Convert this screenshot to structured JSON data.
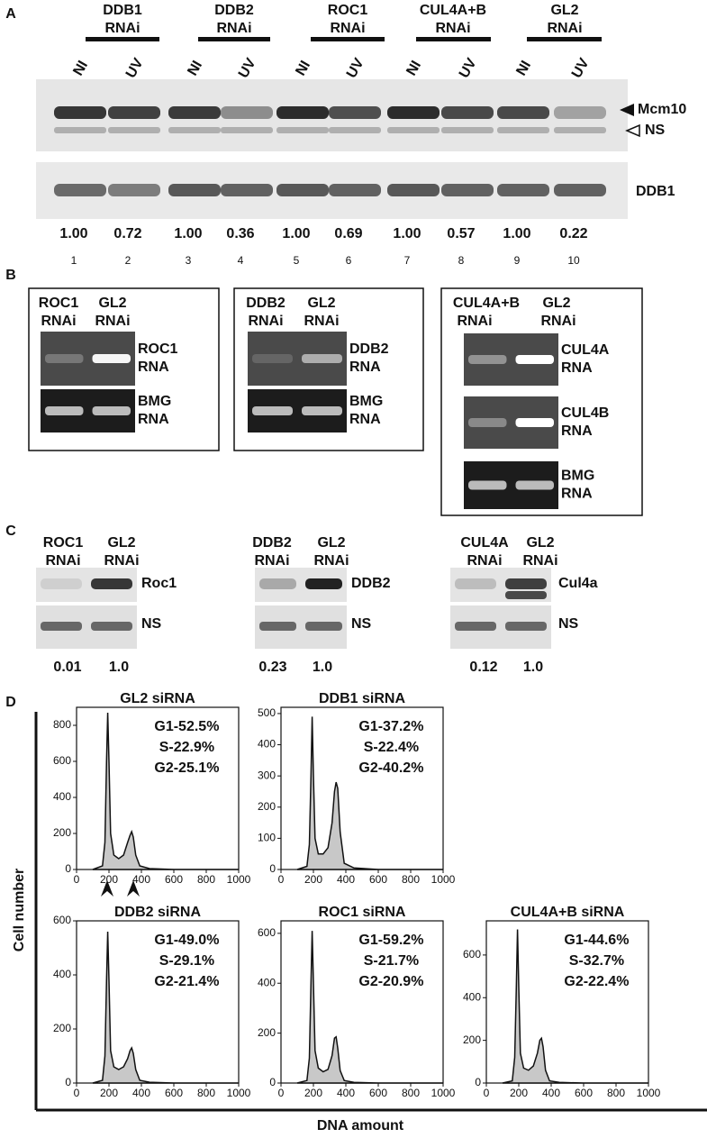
{
  "panel_a": {
    "label": "A",
    "groups": [
      {
        "name": [
          "DDB1",
          "RNAi"
        ]
      },
      {
        "name": [
          "DDB2",
          "RNAi"
        ]
      },
      {
        "name": [
          "ROC1",
          "RNAi"
        ]
      },
      {
        "name": [
          "CUL4A+B",
          "RNAi"
        ]
      },
      {
        "name": [
          "GL2",
          "RNAi"
        ]
      }
    ],
    "lanes": [
      "NI",
      "UV",
      "NI",
      "UV",
      "NI",
      "UV",
      "NI",
      "UV",
      "NI",
      "UV"
    ],
    "bands": [
      "Mcm10",
      "NS",
      "DDB1"
    ],
    "quantities": [
      "1.00",
      "0.72",
      "1.00",
      "0.36",
      "1.00",
      "0.69",
      "1.00",
      "0.57",
      "1.00",
      "0.22"
    ],
    "lane_numbers": [
      1,
      2,
      3,
      4,
      5,
      6,
      7,
      8,
      9,
      10
    ]
  },
  "panel_b": {
    "label": "B",
    "boxes": [
      {
        "headers": [
          [
            "ROC1",
            "RNAi"
          ],
          [
            "GL2",
            "RNAi"
          ]
        ],
        "gels": [
          [
            "ROC1",
            "RNA"
          ],
          [
            "BMG",
            "RNA"
          ]
        ]
      },
      {
        "headers": [
          [
            "DDB2",
            "RNAi"
          ],
          [
            "GL2",
            "RNAi"
          ]
        ],
        "gels": [
          [
            "DDB2",
            "RNA"
          ],
          [
            "BMG",
            "RNA"
          ]
        ]
      },
      {
        "headers": [
          [
            "CUL4A+B",
            "RNAi"
          ],
          [
            "GL2",
            "RNAi"
          ]
        ],
        "gels": [
          [
            "CUL4A",
            "RNA"
          ],
          [
            "CUL4B",
            "RNA"
          ],
          [
            "BMG",
            "RNA"
          ]
        ]
      }
    ]
  },
  "panel_c": {
    "label": "C",
    "blots": [
      {
        "headers": [
          [
            "ROC1",
            "RNAi"
          ],
          [
            "GL2",
            "RNAi"
          ]
        ],
        "bands": [
          "Roc1",
          "NS"
        ],
        "quantities": [
          "0.01",
          "1.0"
        ]
      },
      {
        "headers": [
          [
            "DDB2",
            "RNAi"
          ],
          [
            "GL2",
            "RNAi"
          ]
        ],
        "bands": [
          "DDB2",
          "NS"
        ],
        "quantities": [
          "0.23",
          "1.0"
        ]
      },
      {
        "headers": [
          [
            "CUL4A",
            "RNAi"
          ],
          [
            "GL2",
            "RNAi"
          ]
        ],
        "bands": [
          "Cul4a",
          "NS"
        ],
        "quantities": [
          "0.12",
          "1.0"
        ]
      }
    ]
  },
  "panel_d": {
    "label": "D",
    "ylabel": "Cell number",
    "xlabel": "DNA amount",
    "charts": [
      {
        "type": "line",
        "title": "GL2 siRNA",
        "stats": [
          "G1-52.5%",
          "S-22.9%",
          "G2-25.1%"
        ],
        "color": "#c8c8c8",
        "x": [
          100,
          160,
          175,
          185,
          192,
          200,
          210,
          230,
          260,
          290,
          315,
          330,
          340,
          350,
          365,
          390,
          450,
          600,
          1000
        ],
        "values": [
          0,
          20,
          150,
          600,
          870,
          600,
          200,
          80,
          60,
          80,
          150,
          190,
          210,
          180,
          80,
          20,
          5,
          0,
          0
        ],
        "xlim": [
          0,
          1000
        ],
        "xticks": [
          0,
          200,
          400,
          600,
          800,
          1000
        ],
        "ylim": [
          0,
          900
        ],
        "yticks": [
          0,
          200,
          400,
          600,
          800
        ]
      },
      {
        "type": "line",
        "title": "DDB1 siRNA",
        "stats": [
          "G1-37.2%",
          "S-22.4%",
          "G2-40.2%"
        ],
        "color": "#c8c8c8",
        "x": [
          100,
          160,
          175,
          185,
          192,
          200,
          210,
          230,
          260,
          290,
          315,
          330,
          340,
          350,
          365,
          390,
          450,
          600,
          1000
        ],
        "values": [
          0,
          10,
          80,
          300,
          490,
          300,
          100,
          50,
          50,
          70,
          150,
          250,
          280,
          260,
          120,
          20,
          5,
          0,
          0
        ],
        "xlim": [
          0,
          1000
        ],
        "xticks": [
          0,
          200,
          400,
          600,
          800,
          1000
        ],
        "ylim": [
          0,
          520
        ],
        "yticks": [
          0,
          100,
          200,
          300,
          400,
          500
        ]
      },
      {
        "type": "line",
        "title": "DDB2 siRNA",
        "stats": [
          "G1-49.0%",
          "S-29.1%",
          "G2-21.4%"
        ],
        "color": "#c8c8c8",
        "x": [
          100,
          160,
          175,
          185,
          192,
          200,
          210,
          230,
          260,
          290,
          315,
          330,
          340,
          350,
          365,
          390,
          450,
          600,
          1000
        ],
        "values": [
          0,
          10,
          100,
          380,
          560,
          380,
          120,
          60,
          50,
          60,
          90,
          120,
          130,
          110,
          50,
          10,
          3,
          0,
          0
        ],
        "xlim": [
          0,
          1000
        ],
        "xticks": [
          0,
          200,
          400,
          600,
          800,
          1000
        ],
        "ylim": [
          0,
          600
        ],
        "yticks": [
          0,
          200,
          400,
          600
        ]
      },
      {
        "type": "line",
        "title": "ROC1 siRNA",
        "stats": [
          "G1-59.2%",
          "S-21.7%",
          "G2-20.9%"
        ],
        "color": "#c8c8c8",
        "x": [
          100,
          160,
          175,
          185,
          192,
          200,
          210,
          230,
          260,
          290,
          315,
          330,
          340,
          350,
          365,
          390,
          450,
          600,
          1000
        ],
        "values": [
          0,
          10,
          100,
          400,
          610,
          400,
          130,
          60,
          45,
          55,
          110,
          180,
          185,
          140,
          50,
          10,
          3,
          0,
          0
        ],
        "xlim": [
          0,
          1000
        ],
        "xticks": [
          0,
          200,
          400,
          600,
          800,
          1000
        ],
        "ylim": [
          0,
          650
        ],
        "yticks": [
          0,
          200,
          400,
          600
        ]
      },
      {
        "type": "line",
        "title": "CUL4A+B siRNA",
        "stats": [
          "G1-44.6%",
          "S-32.7%",
          "G2-22.4%"
        ],
        "color": "#c8c8c8",
        "x": [
          100,
          160,
          175,
          185,
          192,
          200,
          210,
          230,
          260,
          290,
          315,
          330,
          340,
          350,
          365,
          390,
          450,
          600,
          1000
        ],
        "values": [
          0,
          10,
          120,
          450,
          720,
          450,
          140,
          70,
          60,
          80,
          140,
          200,
          210,
          170,
          60,
          10,
          3,
          0,
          0
        ],
        "xlim": [
          0,
          1000
        ],
        "xticks": [
          0,
          200,
          400,
          600,
          800,
          1000
        ],
        "ylim": [
          0,
          760
        ],
        "yticks": [
          0,
          200,
          400,
          600
        ]
      }
    ]
  }
}
